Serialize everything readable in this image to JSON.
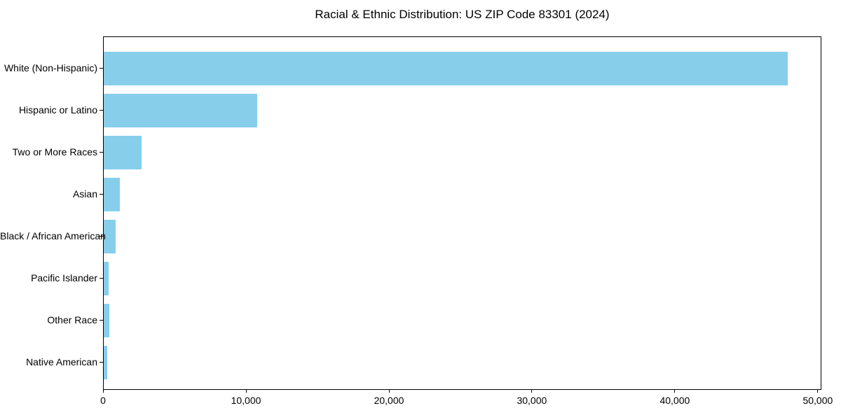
{
  "title": "Racial & Ethnic Distribution: US ZIP Code 83301 (2024)",
  "chart_data": {
    "type": "bar",
    "orientation": "horizontal",
    "title": "Racial & Ethnic Distribution: US ZIP Code 83301 (2024)",
    "xlabel": "",
    "ylabel": "",
    "categories": [
      "White (Non-Hispanic)",
      "Hispanic or Latino",
      "Two or More Races",
      "Asian",
      "Black / African American",
      "Pacific Islander",
      "Other Race",
      "Native American"
    ],
    "values": [
      47860,
      10710,
      2630,
      1130,
      830,
      360,
      380,
      250
    ],
    "xlim": [
      0,
      50250
    ],
    "xticks": {
      "values": [
        0,
        10000,
        20000,
        30000,
        40000,
        50000
      ],
      "labels": [
        "0",
        "10,000",
        "20,000",
        "30,000",
        "40,000",
        "50,000"
      ]
    },
    "bar_color": "#87CEEB",
    "grid": false,
    "legend": null
  }
}
